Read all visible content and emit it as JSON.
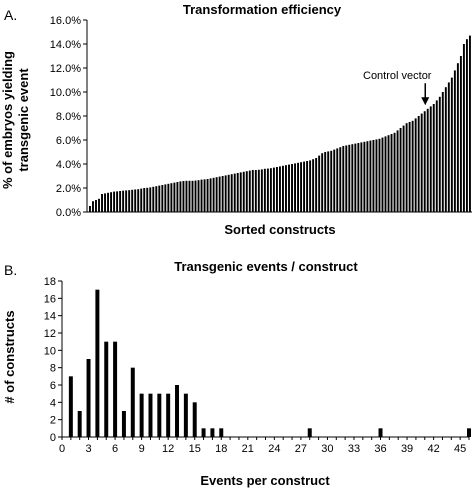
{
  "panels": {
    "a": "A.",
    "b": "B."
  },
  "chart_data": [
    {
      "type": "bar",
      "title": "Transformation efficiency",
      "xlabel": "Sorted constructs",
      "ylabel_lines": [
        "% of embryos yielding",
        "transgenic event"
      ],
      "ylim": [
        0,
        16
      ],
      "yticks": [
        "0.0%",
        "2.0%",
        "4.0%",
        "6.0%",
        "8.0%",
        "10.0%",
        "12.0%",
        "14.0%",
        "16.0%"
      ],
      "annotation": {
        "text": "Control vector",
        "index": 111
      },
      "values": [
        0.5,
        0.9,
        1.0,
        1.1,
        1.5,
        1.55,
        1.6,
        1.65,
        1.7,
        1.72,
        1.75,
        1.78,
        1.8,
        1.82,
        1.85,
        1.88,
        1.9,
        1.95,
        2.0,
        2.02,
        2.05,
        2.1,
        2.15,
        2.2,
        2.25,
        2.3,
        2.35,
        2.4,
        2.45,
        2.5,
        2.55,
        2.58,
        2.6,
        2.6,
        2.6,
        2.62,
        2.65,
        2.7,
        2.72,
        2.75,
        2.8,
        2.85,
        2.9,
        2.95,
        3.0,
        3.05,
        3.1,
        3.15,
        3.2,
        3.25,
        3.3,
        3.35,
        3.4,
        3.45,
        3.5,
        3.5,
        3.52,
        3.55,
        3.6,
        3.62,
        3.65,
        3.7,
        3.75,
        3.8,
        3.85,
        3.9,
        3.95,
        4.0,
        4.05,
        4.1,
        4.15,
        4.2,
        4.25,
        4.3,
        4.4,
        4.5,
        4.7,
        4.9,
        5.0,
        5.05,
        5.1,
        5.2,
        5.3,
        5.4,
        5.5,
        5.55,
        5.6,
        5.65,
        5.7,
        5.75,
        5.8,
        5.85,
        5.9,
        5.95,
        6.0,
        6.05,
        6.1,
        6.2,
        6.3,
        6.4,
        6.5,
        6.6,
        6.8,
        7.0,
        7.2,
        7.4,
        7.5,
        7.6,
        7.8,
        8.0,
        8.2,
        8.4,
        8.6,
        8.8,
        9.0,
        9.3,
        9.6,
        10.0,
        10.4,
        10.8,
        11.2,
        11.8,
        12.4,
        13.0,
        14.0,
        14.4,
        14.7
      ]
    },
    {
      "type": "bar",
      "title": "Transgenic events / construct",
      "xlabel": "Events per construct",
      "ylabel": "# of constructs",
      "ylim": [
        0,
        18
      ],
      "yticks": [
        0,
        2,
        4,
        6,
        8,
        10,
        12,
        14,
        16,
        18
      ],
      "xlim": [
        0,
        46
      ],
      "xticks": [
        0,
        3,
        6,
        9,
        12,
        15,
        18,
        21,
        24,
        27,
        30,
        33,
        36,
        39,
        42,
        45
      ],
      "x": [
        1,
        2,
        3,
        4,
        5,
        6,
        7,
        8,
        9,
        10,
        11,
        12,
        13,
        14,
        15,
        16,
        17,
        18,
        28,
        36,
        46
      ],
      "values": [
        7,
        3,
        9,
        17,
        11,
        11,
        3,
        8,
        5,
        5,
        5,
        5,
        6,
        5,
        4,
        1,
        1,
        1,
        1,
        1,
        1
      ]
    }
  ]
}
